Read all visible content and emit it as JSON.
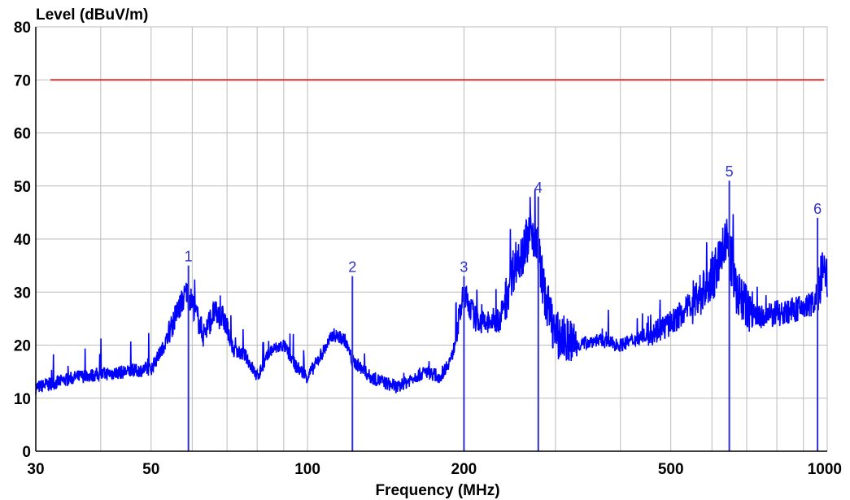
{
  "chart_data": {
    "type": "line",
    "xlabel": "Frequency (MHz)",
    "ylabel": "Level (dBuV/m)",
    "x_scale": "log",
    "xlim": [
      30,
      1000
    ],
    "ylim": [
      0,
      80
    ],
    "grid": true,
    "x_tick_labels": [
      30,
      50,
      100,
      200,
      500,
      1000
    ],
    "y_tick_labels": [
      0,
      10,
      20,
      30,
      40,
      50,
      60,
      70,
      80
    ],
    "limit_line": {
      "value": 70,
      "color": "#e03030"
    },
    "series": [
      {
        "color": "#0000ff",
        "x": [
          30,
          33,
          36,
          40,
          45,
          50,
          53,
          56,
          58.5,
          60,
          63,
          66,
          69,
          72,
          76,
          80,
          85,
          90,
          95,
          100,
          106,
          112,
          118,
          122,
          126,
          132,
          140,
          150,
          160,
          170,
          180,
          190,
          200,
          210,
          220,
          235,
          250,
          260,
          270,
          278,
          285,
          300,
          330,
          360,
          400,
          450,
          500,
          550,
          600,
          640,
          670,
          700,
          750,
          800,
          850,
          900,
          940,
          960,
          980,
          1000
        ],
        "y": [
          12,
          13,
          14,
          14.5,
          15,
          15.5,
          20,
          26,
          30,
          28,
          22,
          26,
          25,
          19,
          18,
          14,
          19,
          20,
          16,
          14,
          18,
          22,
          21,
          17,
          16,
          14,
          13,
          12,
          14,
          15,
          14,
          18,
          30,
          25,
          24,
          25,
          35,
          38,
          42,
          38,
          30,
          22,
          20,
          21,
          20,
          22,
          24,
          28,
          32,
          40,
          30,
          27,
          25,
          26,
          26.5,
          27,
          28,
          30,
          34,
          32
        ]
      }
    ],
    "peak_markers": [
      {
        "label": "1",
        "frequency": 59,
        "level": 35
      },
      {
        "label": "2",
        "frequency": 122,
        "level": 33
      },
      {
        "label": "3",
        "frequency": 200,
        "level": 33
      },
      {
        "label": "4",
        "frequency": 278,
        "level": 48
      },
      {
        "label": "5",
        "frequency": 648,
        "level": 51
      },
      {
        "label": "6",
        "frequency": 958,
        "level": 44
      }
    ]
  },
  "colors": {
    "grid": "#bbbbbb",
    "trace": "#0000ff",
    "marker": "#3030d0",
    "limit": "#e03030"
  }
}
